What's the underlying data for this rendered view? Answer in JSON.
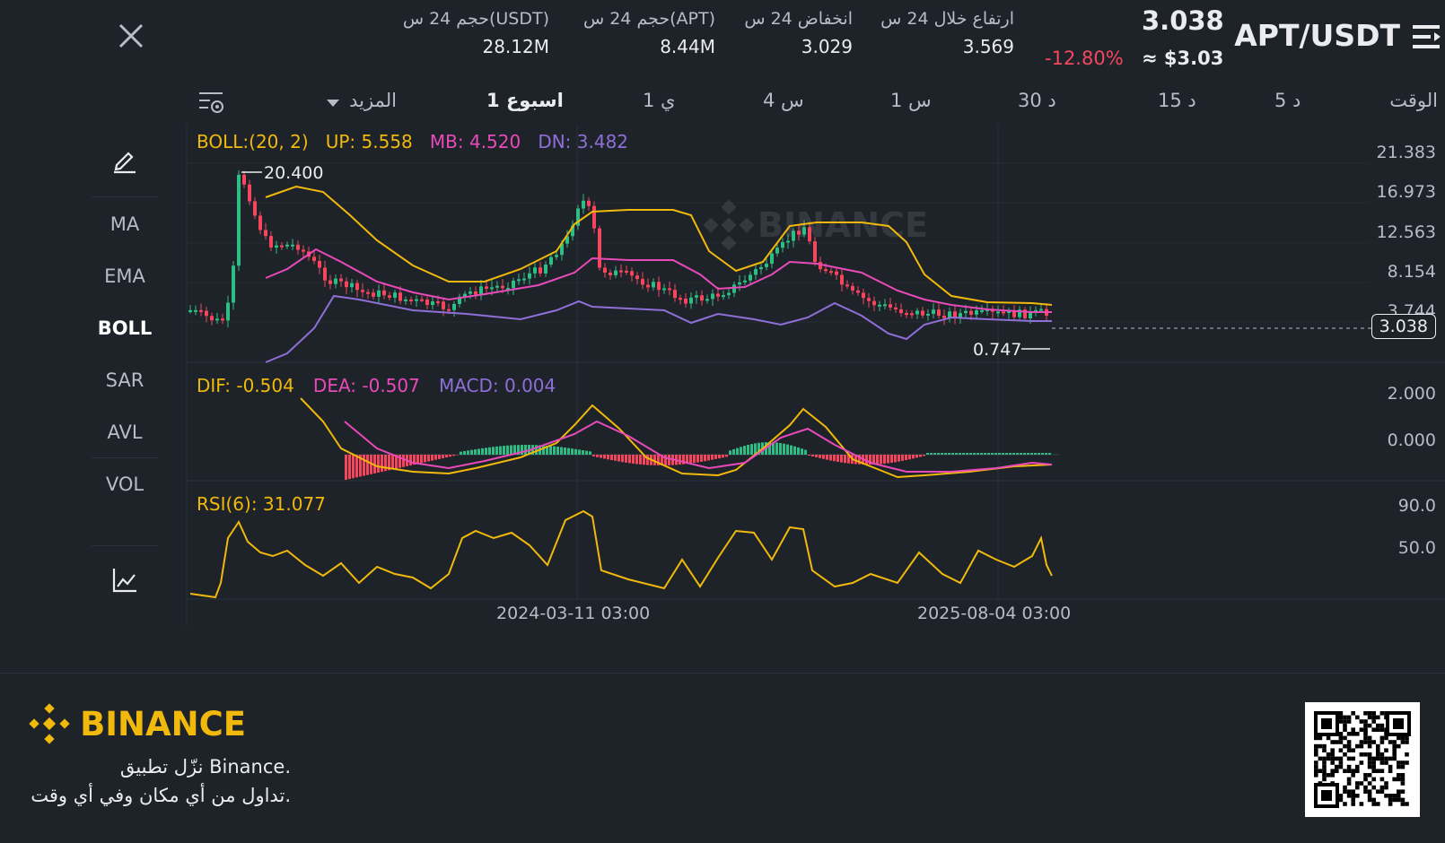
{
  "header": {
    "pair": "APT/USDT",
    "price": "3.038",
    "change_pct": "-12.80%",
    "usd_price": "≈ $3.03",
    "stats": [
      {
        "label": "ارتفاع خلال 24 س",
        "value": "3.569"
      },
      {
        "label": "انخفاض 24 س",
        "value": "3.029"
      },
      {
        "label": "حجم 24 س(APT)",
        "value": "8.44M"
      },
      {
        "label": "حجم 24 س(USDT)",
        "value": "28.12M"
      }
    ]
  },
  "timeframes": {
    "time_label": "الوقت",
    "items": [
      "5 د",
      "15 د",
      "30 د",
      "1 س",
      "4 س",
      "1 ي",
      "1 اسبوع"
    ],
    "active": "1 اسبوع",
    "more_label": "المزيد"
  },
  "indicators": [
    "MA",
    "EMA",
    "BOLL",
    "SAR",
    "AVL",
    "VOL"
  ],
  "active_indicator": "BOLL",
  "boll": {
    "title": "BOLL:(20, 2)",
    "up": "UP: 5.558",
    "mb": "MB: 4.520",
    "dn": "DN: 3.482",
    "high_marker": "20.400",
    "low_marker": "0.747",
    "current_price_tag": "3.038",
    "y_axis": [
      "21.383",
      "16.973",
      "12.563",
      "8.154",
      "3.744"
    ]
  },
  "macd": {
    "dif": "DIF: -0.504",
    "dea": "DEA: -0.507",
    "macd": "MACD: 0.004",
    "y_axis": [
      "2.000",
      "0.000"
    ]
  },
  "rsi": {
    "label": "RSI(6): 31.077",
    "y_axis": [
      "90.0",
      "50.0"
    ]
  },
  "x_axis": [
    "2024-03-11 03:00",
    "2025-08-04 03:00"
  ],
  "watermark": "BINANCE",
  "footer": {
    "brand": "BINANCE",
    "line1": "نزّل تطبيق Binance.",
    "line2": "تداول من أي مكان وفي أي وقت."
  },
  "colors": {
    "up": "#2ebd85",
    "down": "#f6465d",
    "boll_up": "#f0b90b",
    "boll_mb": "#e84aba",
    "boll_dn": "#8e6fd8",
    "brand": "#f0b90b"
  },
  "icons": {
    "menu": "menu-lines-icon",
    "close": "close-icon",
    "settings": "chart-settings-icon",
    "draw": "pencil-icon",
    "chart": "line-chart-icon",
    "logo": "binance-diamond-icon",
    "qr": "qr-code-icon"
  }
}
